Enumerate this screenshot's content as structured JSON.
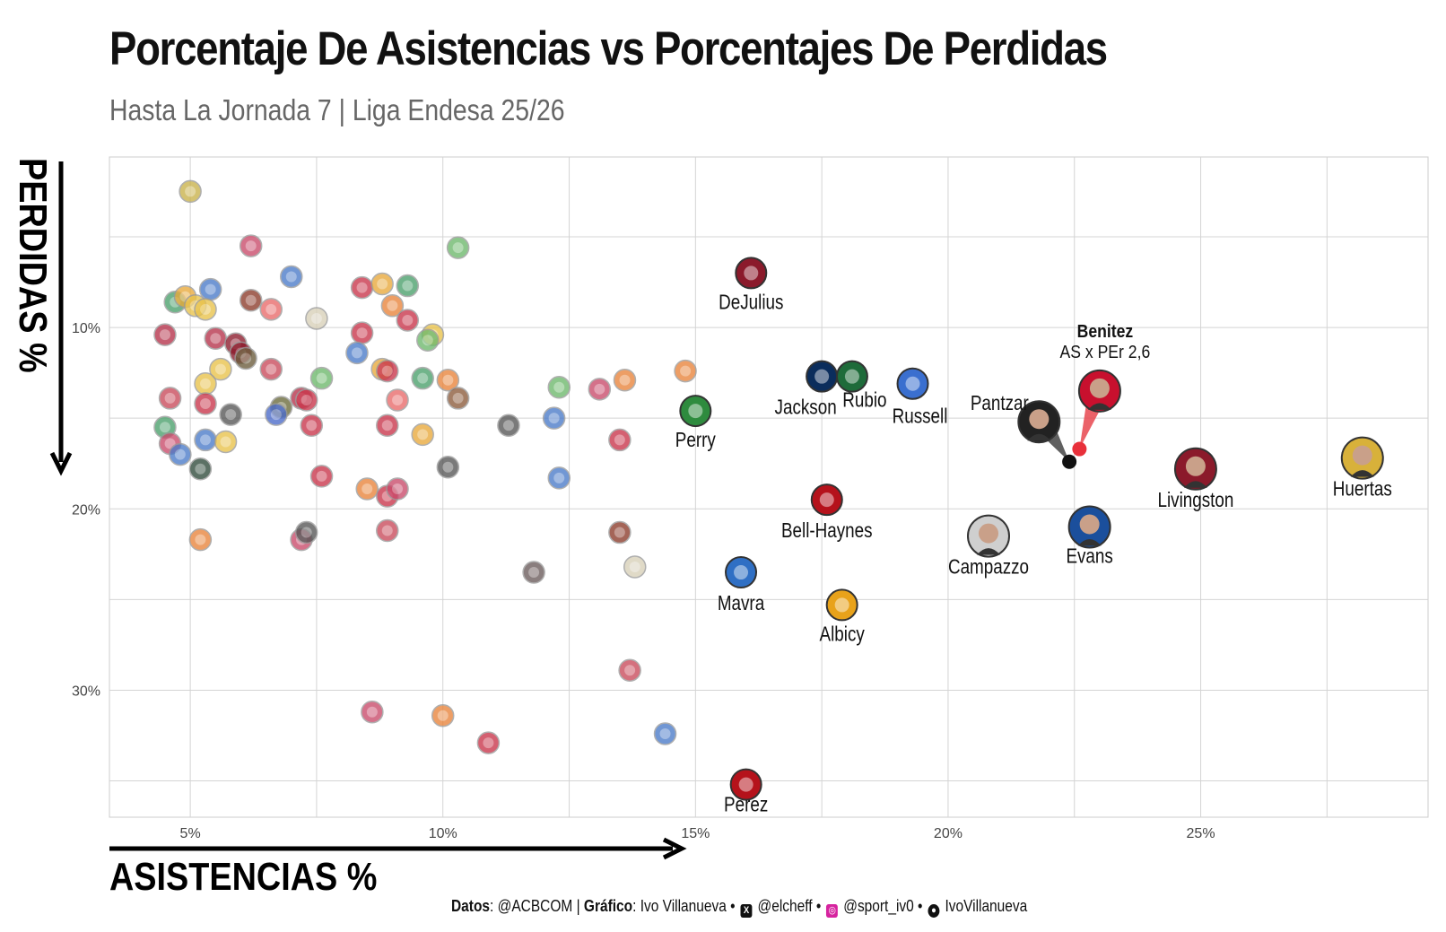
{
  "title": "Porcentaje De Asistencias vs Porcentajes De Perdidas",
  "subtitle": "Hasta La Jornada 7 | Liga Endesa 25/26",
  "footer": {
    "datos_label": "Datos",
    "datos_value": ": @ACBCOM | ",
    "grafico_label": "Gráfico",
    "grafico_value": ": Ivo Villanueva • ",
    "x_handle": "@elcheff",
    "sep1": " • ",
    "ig_handle": "@sport_iv0",
    "sep2": " • ",
    "gh_handle": "IvoVillanueva",
    "icons": [
      "x-icon",
      "instagram-icon",
      "github-icon"
    ]
  },
  "chart_data": {
    "type": "scatter",
    "xlabel": "ASISTENCIAS %",
    "ylabel": "PERDIDAS %",
    "xlim": [
      3.4,
      29.5
    ],
    "ylim": [
      37,
      0.6
    ],
    "y_reversed": true,
    "grid": true,
    "x_ticks": [
      5,
      10,
      15,
      20,
      25
    ],
    "x_tick_labels": [
      "5%",
      "10%",
      "15%",
      "20%",
      "25%"
    ],
    "y_ticks": [
      10,
      20,
      30
    ],
    "y_tick_labels": [
      "10%",
      "20%",
      "30%"
    ],
    "highlighted": [
      {
        "name": "DeJulius",
        "x": 16.1,
        "y": 7.0,
        "color": "#8b1a2b"
      },
      {
        "name": "Jackson",
        "x": 17.5,
        "y": 12.7,
        "color": "#0b2d5c"
      },
      {
        "name": "Rubio",
        "x": 18.1,
        "y": 12.7,
        "color": "#1e6b3a"
      },
      {
        "name": "Russell",
        "x": 19.3,
        "y": 13.1,
        "color": "#3a6fcf"
      },
      {
        "name": "Perry",
        "x": 15.0,
        "y": 14.6,
        "color": "#2e8b3e"
      },
      {
        "name": "Pantzar",
        "x": 21.8,
        "y": 15.2,
        "color": "#222222"
      },
      {
        "name": "Benitez",
        "x": 23.0,
        "y": 13.5,
        "color": "#c8102e"
      },
      {
        "name": "Livingston",
        "x": 24.9,
        "y": 17.8,
        "color": "#8b1a2b"
      },
      {
        "name": "Huertas",
        "x": 28.2,
        "y": 17.2,
        "color": "#d8b13a"
      },
      {
        "name": "Bell-Haynes",
        "x": 17.6,
        "y": 19.5,
        "color": "#b5121b"
      },
      {
        "name": "Campazzo",
        "x": 20.8,
        "y": 21.5,
        "color": "#cfcfcf"
      },
      {
        "name": "Evans",
        "x": 22.8,
        "y": 21.0,
        "color": "#1b4f9c"
      },
      {
        "name": "Mavra",
        "x": 15.9,
        "y": 23.5,
        "color": "#2f6fc4"
      },
      {
        "name": "Albicy",
        "x": 17.9,
        "y": 25.3,
        "color": "#e8a21a"
      },
      {
        "name": "Perez",
        "x": 16.0,
        "y": 35.2,
        "color": "#b5121b"
      }
    ],
    "annotation": {
      "title": "Benitez",
      "text": "AS x PEr 2,6",
      "red_point": {
        "x": 22.6,
        "y": 16.7
      },
      "black_point": {
        "x": 22.4,
        "y": 17.4
      }
    },
    "background_points": [
      {
        "x": 5.0,
        "y": 2.5,
        "c": "#c9b24a"
      },
      {
        "x": 6.2,
        "y": 5.5,
        "c": "#c94a6a"
      },
      {
        "x": 10.3,
        "y": 5.6,
        "c": "#6db86b"
      },
      {
        "x": 7.0,
        "y": 7.2,
        "c": "#4a7ac9"
      },
      {
        "x": 5.4,
        "y": 7.9,
        "c": "#4a7ac9"
      },
      {
        "x": 4.7,
        "y": 8.6,
        "c": "#4aa06b"
      },
      {
        "x": 4.9,
        "y": 8.3,
        "c": "#e8a93a"
      },
      {
        "x": 5.1,
        "y": 8.8,
        "c": "#e8c24a"
      },
      {
        "x": 5.3,
        "y": 9.0,
        "c": "#e8c24a"
      },
      {
        "x": 6.2,
        "y": 8.5,
        "c": "#8b3a2a"
      },
      {
        "x": 6.6,
        "y": 9.0,
        "c": "#e86a6a"
      },
      {
        "x": 7.5,
        "y": 9.5,
        "c": "#d8d0b8"
      },
      {
        "x": 8.4,
        "y": 7.8,
        "c": "#c9344a"
      },
      {
        "x": 8.8,
        "y": 7.6,
        "c": "#e8a93a"
      },
      {
        "x": 9.3,
        "y": 7.7,
        "c": "#4aa06b"
      },
      {
        "x": 9.0,
        "y": 8.8,
        "c": "#e8843a"
      },
      {
        "x": 9.3,
        "y": 9.6,
        "c": "#c9344a"
      },
      {
        "x": 9.8,
        "y": 10.4,
        "c": "#e8c24a"
      },
      {
        "x": 9.7,
        "y": 10.7,
        "c": "#6db86b"
      },
      {
        "x": 4.5,
        "y": 10.4,
        "c": "#b5324a"
      },
      {
        "x": 5.5,
        "y": 10.6,
        "c": "#b5324a"
      },
      {
        "x": 5.9,
        "y": 10.9,
        "c": "#8b1a2b"
      },
      {
        "x": 6.0,
        "y": 11.4,
        "c": "#8b1a2b"
      },
      {
        "x": 6.1,
        "y": 11.7,
        "c": "#6a5a3a"
      },
      {
        "x": 5.6,
        "y": 12.3,
        "c": "#e8c24a"
      },
      {
        "x": 5.3,
        "y": 13.1,
        "c": "#e8c24a"
      },
      {
        "x": 6.6,
        "y": 12.3,
        "c": "#c94a5a"
      },
      {
        "x": 8.4,
        "y": 10.3,
        "c": "#c9344a"
      },
      {
        "x": 8.3,
        "y": 11.4,
        "c": "#4a7ac9"
      },
      {
        "x": 8.8,
        "y": 12.3,
        "c": "#e8a93a"
      },
      {
        "x": 8.9,
        "y": 12.4,
        "c": "#c9344a"
      },
      {
        "x": 7.6,
        "y": 12.8,
        "c": "#6db86b"
      },
      {
        "x": 9.6,
        "y": 12.8,
        "c": "#4aa06b"
      },
      {
        "x": 10.1,
        "y": 12.9,
        "c": "#e8843a"
      },
      {
        "x": 4.6,
        "y": 13.9,
        "c": "#c94a5a"
      },
      {
        "x": 5.3,
        "y": 14.2,
        "c": "#c9344a"
      },
      {
        "x": 5.8,
        "y": 14.8,
        "c": "#555555"
      },
      {
        "x": 6.8,
        "y": 14.4,
        "c": "#6a6a3a"
      },
      {
        "x": 6.7,
        "y": 14.8,
        "c": "#4a6ac9"
      },
      {
        "x": 7.2,
        "y": 13.9,
        "c": "#b5324a"
      },
      {
        "x": 7.3,
        "y": 14.0,
        "c": "#c9344a"
      },
      {
        "x": 7.4,
        "y": 15.4,
        "c": "#c9344a"
      },
      {
        "x": 9.1,
        "y": 14.0,
        "c": "#e86a6a"
      },
      {
        "x": 8.9,
        "y": 15.4,
        "c": "#c9344a"
      },
      {
        "x": 10.3,
        "y": 13.9,
        "c": "#8b5a3a"
      },
      {
        "x": 12.3,
        "y": 13.3,
        "c": "#6db86b"
      },
      {
        "x": 12.2,
        "y": 15.0,
        "c": "#4a7ac9"
      },
      {
        "x": 11.3,
        "y": 15.4,
        "c": "#555555"
      },
      {
        "x": 13.1,
        "y": 13.4,
        "c": "#c94a6a"
      },
      {
        "x": 13.6,
        "y": 12.9,
        "c": "#e8843a"
      },
      {
        "x": 14.8,
        "y": 12.4,
        "c": "#e8843a"
      },
      {
        "x": 13.5,
        "y": 16.2,
        "c": "#c9344a"
      },
      {
        "x": 4.5,
        "y": 15.5,
        "c": "#4aa06b"
      },
      {
        "x": 4.6,
        "y": 16.4,
        "c": "#c94a6a"
      },
      {
        "x": 4.8,
        "y": 17.0,
        "c": "#4a7ac9"
      },
      {
        "x": 5.3,
        "y": 16.2,
        "c": "#4a7ac9"
      },
      {
        "x": 5.7,
        "y": 16.3,
        "c": "#e8c24a"
      },
      {
        "x": 5.2,
        "y": 17.8,
        "c": "#2f4a3a"
      },
      {
        "x": 9.6,
        "y": 15.9,
        "c": "#e8a93a"
      },
      {
        "x": 10.1,
        "y": 17.7,
        "c": "#555555"
      },
      {
        "x": 12.3,
        "y": 18.3,
        "c": "#4a7ac9"
      },
      {
        "x": 7.6,
        "y": 18.2,
        "c": "#c9344a"
      },
      {
        "x": 8.5,
        "y": 18.9,
        "c": "#e8843a"
      },
      {
        "x": 8.9,
        "y": 19.3,
        "c": "#c9344a"
      },
      {
        "x": 9.1,
        "y": 18.9,
        "c": "#c94a6a"
      },
      {
        "x": 5.2,
        "y": 21.7,
        "c": "#e8843a"
      },
      {
        "x": 7.2,
        "y": 21.7,
        "c": "#c94a6a"
      },
      {
        "x": 7.3,
        "y": 21.3,
        "c": "#555555"
      },
      {
        "x": 8.9,
        "y": 21.2,
        "c": "#c94a5a"
      },
      {
        "x": 13.5,
        "y": 21.3,
        "c": "#8b3a2a"
      },
      {
        "x": 11.8,
        "y": 23.5,
        "c": "#6a5a5a"
      },
      {
        "x": 13.8,
        "y": 23.2,
        "c": "#d8d0b8"
      },
      {
        "x": 13.7,
        "y": 28.9,
        "c": "#c94a5a"
      },
      {
        "x": 8.6,
        "y": 31.2,
        "c": "#c94a6a"
      },
      {
        "x": 10.0,
        "y": 31.4,
        "c": "#e8843a"
      },
      {
        "x": 10.9,
        "y": 32.9,
        "c": "#c9344a"
      },
      {
        "x": 14.4,
        "y": 32.4,
        "c": "#4a7ac9"
      }
    ]
  }
}
